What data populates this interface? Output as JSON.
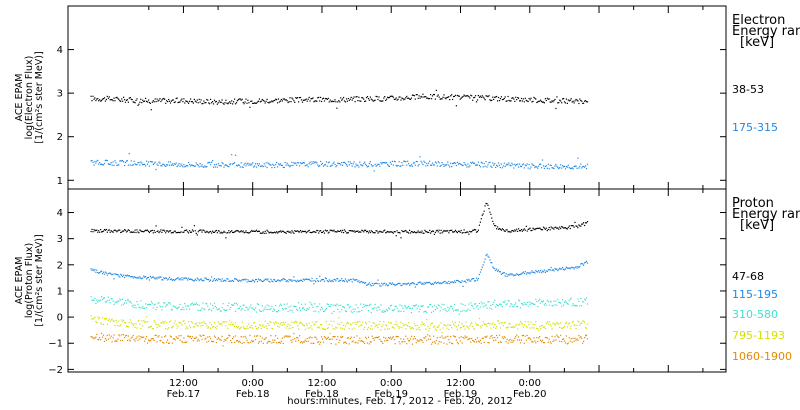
{
  "chart_data": {
    "type": "scatter",
    "xlabel": "hours:minutes, Feb. 17, 2012 - Feb. 20, 2012",
    "x_range_hours": [
      -8,
      106
    ],
    "x_ticks": [
      {
        "hour": 12,
        "time": "12:00",
        "date": "Feb.17"
      },
      {
        "hour": 24,
        "time": "0:00",
        "date": "Feb.18"
      },
      {
        "hour": 36,
        "time": "12:00",
        "date": "Feb.18"
      },
      {
        "hour": 48,
        "time": "0:00",
        "date": "Feb.19"
      },
      {
        "hour": 60,
        "time": "12:00",
        "date": "Feb.19"
      },
      {
        "hour": 72,
        "time": "0:00",
        "date": "Feb.20"
      }
    ],
    "panels": [
      {
        "id": "electron",
        "ylabel_lines": [
          "ACE EPAM",
          "log(Electron Flux)",
          "[1/(cm²s ster MeV)]"
        ],
        "ylim": [
          0.8,
          5.0
        ],
        "yticks": [
          1,
          2,
          3,
          4
        ],
        "legend_title": [
          "Electron",
          "Energy range",
          "[keV]"
        ],
        "series": [
          {
            "name": "38-53",
            "color": "#000000",
            "x": [
              -4,
              0,
              6,
              12,
              18,
              24,
              30,
              36,
              42,
              48,
              54,
              60,
              66,
              72,
              78,
              82
            ],
            "y": [
              2.88,
              2.86,
              2.82,
              2.83,
              2.8,
              2.82,
              2.84,
              2.85,
              2.86,
              2.88,
              2.92,
              2.9,
              2.88,
              2.85,
              2.82,
              2.8
            ]
          },
          {
            "name": "175-315",
            "color": "#1e88e5",
            "x": [
              -4,
              0,
              6,
              12,
              18,
              24,
              30,
              36,
              42,
              48,
              54,
              60,
              66,
              72,
              78,
              82
            ],
            "y": [
              1.4,
              1.4,
              1.38,
              1.36,
              1.35,
              1.35,
              1.35,
              1.38,
              1.36,
              1.38,
              1.38,
              1.36,
              1.35,
              1.32,
              1.32,
              1.32
            ]
          }
        ]
      },
      {
        "id": "proton",
        "ylabel_lines": [
          "ACE EPAM",
          "log(Proton Flux)",
          "[1/(cm²s ster MeV)]"
        ],
        "ylim": [
          -2.1,
          4.9
        ],
        "yticks": [
          -2,
          -1,
          0,
          1,
          2,
          3,
          4
        ],
        "legend_title": [
          "Proton",
          "Energy range",
          "[keV]"
        ],
        "series": [
          {
            "name": "47-68",
            "color": "#000000",
            "x": [
              -4,
              0,
              6,
              12,
              18,
              24,
              30,
              36,
              42,
              48,
              54,
              60,
              63,
              64.5,
              66,
              68,
              72,
              76,
              80,
              82
            ],
            "y": [
              3.3,
              3.3,
              3.28,
              3.28,
              3.27,
              3.26,
              3.26,
              3.27,
              3.28,
              3.27,
              3.26,
              3.27,
              3.3,
              4.4,
              3.45,
              3.3,
              3.35,
              3.4,
              3.45,
              3.6
            ]
          },
          {
            "name": "115-195",
            "color": "#1e88e5",
            "x": [
              -4,
              -2,
              0,
              6,
              12,
              18,
              24,
              30,
              36,
              42,
              44,
              48,
              54,
              60,
              63,
              64.5,
              66,
              68,
              72,
              76,
              80,
              82
            ],
            "y": [
              1.8,
              1.7,
              1.6,
              1.5,
              1.45,
              1.42,
              1.4,
              1.4,
              1.42,
              1.4,
              1.25,
              1.25,
              1.3,
              1.35,
              1.45,
              2.4,
              1.8,
              1.6,
              1.7,
              1.8,
              1.9,
              2.1
            ]
          },
          {
            "name": "310-580",
            "color": "#40e0d0",
            "x": [
              -4,
              0,
              6,
              12,
              18,
              24,
              30,
              36,
              42,
              48,
              54,
              60,
              64,
              66,
              70,
              74,
              78,
              82
            ],
            "y": [
              0.7,
              0.6,
              0.45,
              0.4,
              0.38,
              0.35,
              0.35,
              0.35,
              0.35,
              0.32,
              0.32,
              0.35,
              0.45,
              0.5,
              0.5,
              0.55,
              0.55,
              0.6
            ]
          },
          {
            "name": "795-1193",
            "color": "#d4e000",
            "x": [
              -4,
              0,
              6,
              12,
              18,
              24,
              30,
              36,
              42,
              48,
              54,
              60,
              66,
              72,
              78,
              82
            ],
            "y": [
              -0.1,
              -0.2,
              -0.3,
              -0.3,
              -0.3,
              -0.3,
              -0.3,
              -0.32,
              -0.32,
              -0.33,
              -0.33,
              -0.32,
              -0.3,
              -0.3,
              -0.3,
              -0.3
            ]
          },
          {
            "name": "1060-1900",
            "color": "#e08a00",
            "x": [
              -4,
              0,
              6,
              12,
              18,
              24,
              30,
              36,
              42,
              48,
              54,
              60,
              66,
              72,
              78,
              82
            ],
            "y": [
              -0.75,
              -0.8,
              -0.85,
              -0.85,
              -0.85,
              -0.85,
              -0.85,
              -0.88,
              -0.88,
              -0.88,
              -0.88,
              -0.88,
              -0.85,
              -0.85,
              -0.85,
              -0.85
            ]
          }
        ]
      }
    ]
  }
}
